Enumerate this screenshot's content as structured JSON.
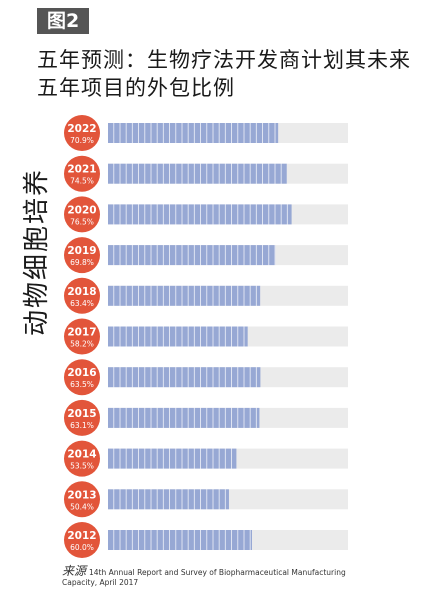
{
  "figure_label": "图2",
  "chart_data": {
    "type": "bar",
    "orientation": "horizontal",
    "title": "五年预测：生物疗法开发商计划其未来五年项目的外包比例",
    "ylabel": "动物细胞培养",
    "xlabel": "",
    "categories": [
      "2022",
      "2021",
      "2020",
      "2019",
      "2018",
      "2017",
      "2016",
      "2015",
      "2014",
      "2013",
      "2012"
    ],
    "values": [
      70.9,
      74.5,
      76.5,
      69.8,
      63.4,
      58.2,
      63.5,
      63.1,
      53.5,
      50.4,
      60.0
    ],
    "value_labels": [
      "70.9%",
      "74.5%",
      "76.5%",
      "69.8%",
      "63.4%",
      "58.2%",
      "63.5%",
      "63.1%",
      "53.5%",
      "50.4%",
      "60.0%"
    ],
    "xlim": [
      0,
      100
    ],
    "grid": false,
    "legend": "none",
    "colors": {
      "bar_fill": "#97a8d4",
      "bar_segment_line": "#ffffff",
      "track": "#ebebeb",
      "badge": "#e2553a",
      "badge_text": "#ffffff"
    }
  },
  "source": {
    "label": "来源",
    "text": "14th Annual Report and Survey of Biopharmaceutical Manufacturing Capacity, April 2017"
  }
}
